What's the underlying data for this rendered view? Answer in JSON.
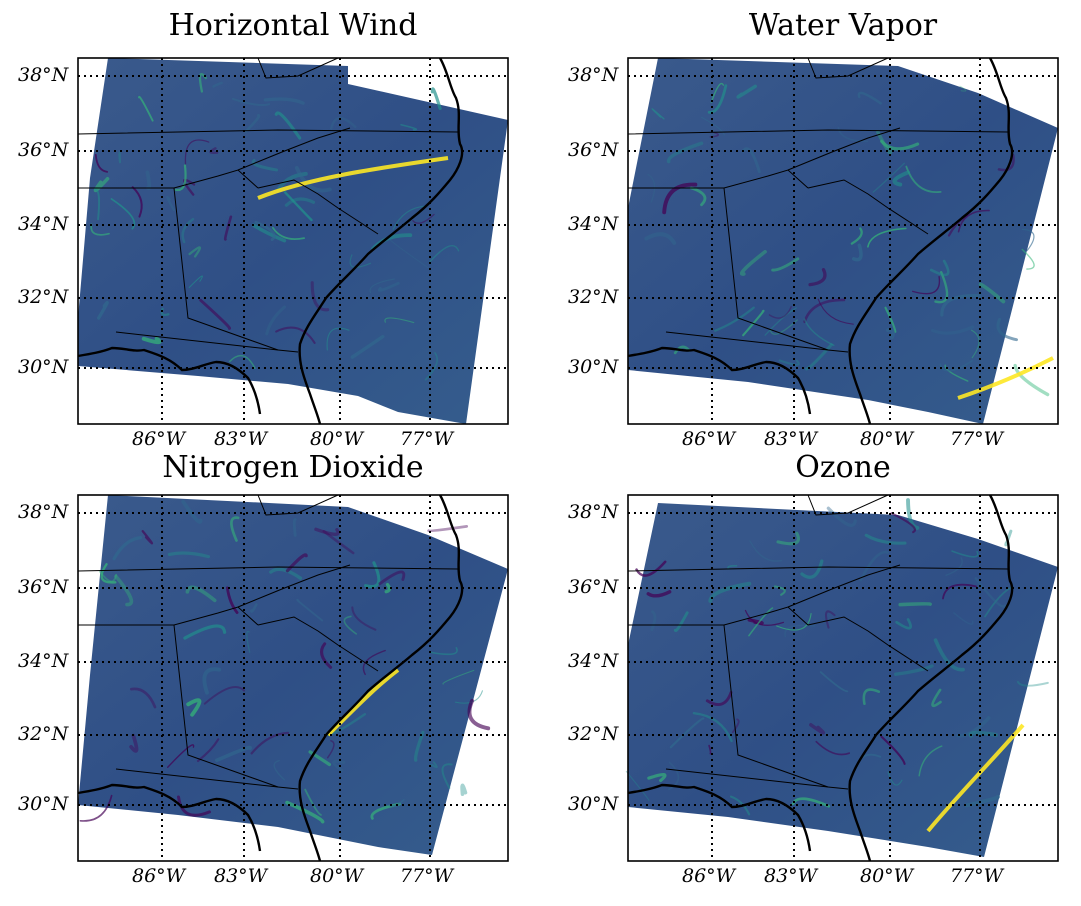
{
  "panels": [
    {
      "title": "Horizontal Wind",
      "colormap": "viridis",
      "field": "wind"
    },
    {
      "title": "Water Vapor",
      "colormap": "viridis",
      "field": "vapor"
    },
    {
      "title": "Nitrogen Dioxide",
      "colormap": "viridis",
      "field": "no2"
    },
    {
      "title": "Ozone",
      "colormap": "viridis",
      "field": "ozone"
    }
  ],
  "lat_labels": [
    "38°N",
    "36°N",
    "34°N",
    "32°N",
    "30°N"
  ],
  "lon_labels": [
    "86°W",
    "83°W",
    "80°W",
    "77°W"
  ],
  "colors": {
    "viridis_dark": "#440154",
    "viridis_mid": "#31688e",
    "viridis_teal": "#21918c",
    "viridis_green": "#35b779",
    "viridis_yellow": "#fde725",
    "background": "#3b528b"
  }
}
